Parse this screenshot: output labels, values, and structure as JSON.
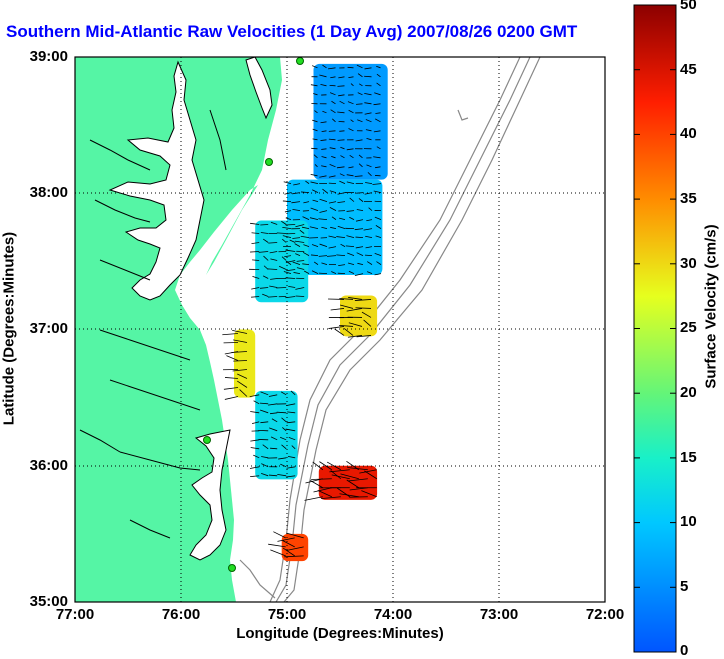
{
  "title": "Southern Mid-Atlantic Raw Velocities (1 Day Avg) 2007/08/26 0200 GMT",
  "xlabel": "Longitude (Degrees:Minutes)",
  "ylabel": "Latitude (Degrees:Minutes)",
  "colorbar_label": "Surface Velocity (cm/s)",
  "x_ticks": [
    "77:00",
    "76:00",
    "75:00",
    "74:00",
    "73:00",
    "72:00"
  ],
  "y_ticks": [
    "39:00",
    "38:00",
    "37:00",
    "36:00",
    "35:00"
  ],
  "colorbar_ticks": [
    "0",
    "5",
    "10",
    "15",
    "20",
    "25",
    "30",
    "35",
    "40",
    "45",
    "50"
  ],
  "colors": {
    "land": "#55f5a5",
    "title": "#0000ff",
    "vector": "#000000"
  },
  "chart_data": {
    "type": "heatmap",
    "title": "Southern Mid-Atlantic Raw Velocities (1 Day Avg) 2007/08/26 0200 GMT",
    "xlabel": "Longitude (Degrees:Minutes)",
    "ylabel": "Latitude (Degrees:Minutes)",
    "xlim": [
      -77,
      -72
    ],
    "ylim": [
      35,
      39
    ],
    "grid": true,
    "colorbar": {
      "label": "Surface Velocity (cm/s)",
      "range": [
        0,
        50
      ]
    },
    "regions": [
      {
        "lon": [
          -74.75,
          -74.05
        ],
        "lat": [
          38.1,
          38.95
        ],
        "speed": 6
      },
      {
        "lon": [
          -75.0,
          -74.1
        ],
        "lat": [
          37.4,
          38.1
        ],
        "speed": 9
      },
      {
        "lon": [
          -75.3,
          -74.8
        ],
        "lat": [
          37.2,
          37.8
        ],
        "speed": 12
      },
      {
        "lon": [
          -74.5,
          -74.15
        ],
        "lat": [
          36.95,
          37.25
        ],
        "speed": 30
      },
      {
        "lon": [
          -75.5,
          -75.3
        ],
        "lat": [
          36.5,
          37.0
        ],
        "speed": 29
      },
      {
        "lon": [
          -75.3,
          -74.9
        ],
        "lat": [
          35.9,
          36.55
        ],
        "speed": 12
      },
      {
        "lon": [
          -74.7,
          -74.15
        ],
        "lat": [
          35.75,
          36.0
        ],
        "speed": 44
      },
      {
        "lon": [
          -75.05,
          -74.8
        ],
        "lat": [
          35.3,
          35.5
        ],
        "speed": 40
      }
    ]
  }
}
